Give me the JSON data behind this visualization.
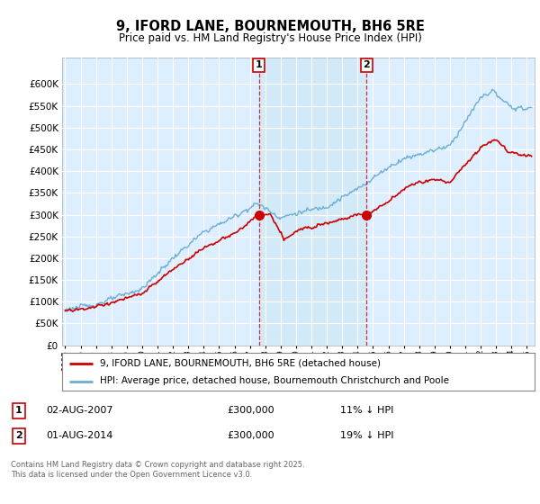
{
  "title": "9, IFORD LANE, BOURNEMOUTH, BH6 5RE",
  "subtitle": "Price paid vs. HM Land Registry's House Price Index (HPI)",
  "ylim": [
    0,
    660000
  ],
  "ytick_values": [
    0,
    50000,
    100000,
    150000,
    200000,
    250000,
    300000,
    350000,
    400000,
    450000,
    500000,
    550000,
    600000
  ],
  "hpi_color": "#6aaed6",
  "hpi_fill_color": "#d0e8f5",
  "price_color": "#cc0000",
  "sale1_date_x": 2007.58,
  "sale1_price": 300000,
  "sale2_date_x": 2014.58,
  "sale2_price": 300000,
  "legend_price_label": "9, IFORD LANE, BOURNEMOUTH, BH6 5RE (detached house)",
  "legend_hpi_label": "HPI: Average price, detached house, Bournemouth Christchurch and Poole",
  "sale1_label": "1",
  "sale1_info": "02-AUG-2007",
  "sale1_amount": "£300,000",
  "sale1_hpi": "11% ↓ HPI",
  "sale2_label": "2",
  "sale2_info": "01-AUG-2014",
  "sale2_amount": "£300,000",
  "sale2_hpi": "19% ↓ HPI",
  "footer": "Contains HM Land Registry data © Crown copyright and database right 2025.\nThis data is licensed under the Open Government Licence v3.0.",
  "plot_bg_color": "#ddeeff",
  "grid_color": "#ffffff",
  "xlim_left": 1994.8,
  "xlim_right": 2025.5
}
